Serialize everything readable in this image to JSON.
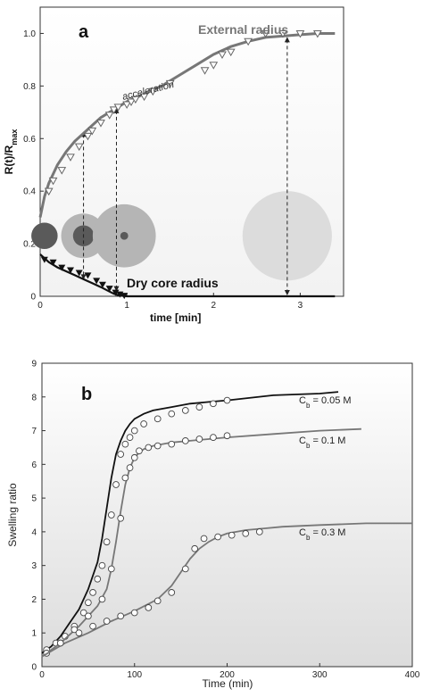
{
  "chart_data": [
    {
      "panel": "a",
      "type": "line",
      "ylabel_main": "R(t)/R",
      "ylabel_sub": "max",
      "xlabel": "time [min]",
      "xlim": [
        0,
        3.5
      ],
      "ylim": [
        0,
        1.1
      ],
      "xticks": [
        "0",
        "1",
        "2",
        "3"
      ],
      "yticks": [
        "0",
        "0.2",
        "0.4",
        "0.6",
        "0.8",
        "1.0"
      ],
      "grid": false,
      "annotations": {
        "external": "External radius",
        "dry": "Dry core radius",
        "accel": "acceleration"
      },
      "series": [
        {
          "name": "External radius",
          "color": "#777777",
          "fit": {
            "x": [
              0,
              0.05,
              0.1,
              0.2,
              0.3,
              0.4,
              0.5,
              0.6,
              0.7,
              0.8,
              0.9,
              1.0,
              1.2,
              1.4,
              1.6,
              1.8,
              2.0,
              2.2,
              2.4,
              2.6,
              2.8,
              3.0,
              3.2,
              3.4
            ],
            "y": [
              0.3,
              0.38,
              0.43,
              0.5,
              0.55,
              0.59,
              0.62,
              0.65,
              0.68,
              0.7,
              0.72,
              0.74,
              0.77,
              0.8,
              0.84,
              0.88,
              0.92,
              0.95,
              0.97,
              0.985,
              0.99,
              0.995,
              1.0,
              1.0
            ]
          },
          "points": {
            "x": [
              0.1,
              0.15,
              0.25,
              0.35,
              0.45,
              0.55,
              0.6,
              0.7,
              0.8,
              0.85,
              0.9,
              1.0,
              1.05,
              1.1,
              1.2,
              1.3,
              1.5,
              1.9,
              2.0,
              2.1,
              2.2,
              2.4,
              2.6,
              2.8,
              3.0,
              3.2
            ],
            "y": [
              0.4,
              0.44,
              0.48,
              0.53,
              0.57,
              0.61,
              0.63,
              0.66,
              0.69,
              0.71,
              0.72,
              0.73,
              0.74,
              0.75,
              0.76,
              0.78,
              0.81,
              0.86,
              0.88,
              0.92,
              0.93,
              0.97,
              1.0,
              1.0,
              1.0,
              1.0
            ]
          }
        },
        {
          "name": "Dry core radius",
          "color": "#111111",
          "fit": {
            "x": [
              0,
              0.1,
              0.2,
              0.3,
              0.4,
              0.5,
              0.6,
              0.7,
              0.8,
              0.85,
              0.9,
              1.0,
              1.5,
              2.0,
              2.5,
              3.0,
              3.4
            ],
            "y": [
              0.16,
              0.13,
              0.11,
              0.095,
              0.08,
              0.065,
              0.05,
              0.035,
              0.018,
              0.01,
              0.004,
              0.0,
              0.0,
              0.0,
              0.0,
              0.0,
              0.0
            ]
          },
          "points": {
            "x": [
              0.05,
              0.15,
              0.25,
              0.35,
              0.45,
              0.55,
              0.65,
              0.72,
              0.8,
              0.87,
              0.92,
              0.97
            ],
            "y": [
              0.14,
              0.13,
              0.11,
              0.1,
              0.09,
              0.08,
              0.06,
              0.045,
              0.03,
              0.015,
              0.008,
              0.003
            ]
          }
        }
      ],
      "arrows": [
        {
          "x": 0.5,
          "y1": 0.63,
          "y2": 0.06
        },
        {
          "x": 0.88,
          "y1": 0.72,
          "y2": 0.015
        },
        {
          "x": 2.85,
          "y1": 0.99,
          "y2": 0.0
        }
      ],
      "schematics": [
        {
          "x": 0.05,
          "y": 0.23,
          "r_outer": 0.1,
          "r_core": 0.1
        },
        {
          "x": 0.5,
          "y": 0.23,
          "r_outer": 0.17,
          "r_core": 0.08
        },
        {
          "x": 0.97,
          "y": 0.23,
          "r_outer": 0.24,
          "r_core": 0.03
        },
        {
          "x": 2.85,
          "y": 0.23,
          "r_outer": 0.34,
          "r_core": 0
        }
      ],
      "colors": {
        "outer_fill": "#b5b5b5",
        "core_fill": "#5a5a5a",
        "last_fill": "#dcdcdc"
      }
    },
    {
      "panel": "b",
      "type": "line",
      "xlabel": "Time (min)",
      "ylabel": "Swelling ratio",
      "xlim": [
        0,
        400
      ],
      "ylim": [
        0,
        9
      ],
      "xticks": [
        "0",
        "100",
        "200",
        "300",
        "400"
      ],
      "yticks": [
        "0",
        "1",
        "2",
        "3",
        "4",
        "5",
        "6",
        "7",
        "8",
        "9"
      ],
      "grid": false,
      "series": [
        {
          "name": "C_b = 0.05 M",
          "label_main": "C",
          "label_sub": "b",
          "label_tail": " = 0.05 M",
          "color": "#111111",
          "fit": {
            "x": [
              0,
              10,
              20,
              30,
              40,
              50,
              60,
              65,
              70,
              75,
              80,
              85,
              90,
              95,
              100,
              110,
              120,
              140,
              160,
              180,
              200,
              250,
              300,
              320
            ],
            "y": [
              0.4,
              0.6,
              0.9,
              1.3,
              1.7,
              2.3,
              3.1,
              3.8,
              4.7,
              5.6,
              6.3,
              6.7,
              7.0,
              7.2,
              7.35,
              7.5,
              7.6,
              7.7,
              7.8,
              7.85,
              7.9,
              8.05,
              8.1,
              8.15
            ]
          },
          "points": {
            "x": [
              5,
              15,
              25,
              35,
              45,
              50,
              55,
              60,
              65,
              70,
              75,
              80,
              85,
              90,
              95,
              100,
              110,
              125,
              140,
              155,
              170,
              185,
              200
            ],
            "y": [
              0.5,
              0.7,
              0.9,
              1.2,
              1.6,
              1.9,
              2.2,
              2.6,
              3.0,
              3.7,
              4.5,
              5.4,
              6.3,
              6.6,
              6.8,
              7.0,
              7.2,
              7.35,
              7.5,
              7.6,
              7.7,
              7.8,
              7.9
            ]
          }
        },
        {
          "name": "C_b = 0.1 M",
          "label_main": "C",
          "label_sub": "b",
          "label_tail": " = 0.1 M",
          "color": "#777777",
          "fit": {
            "x": [
              0,
              20,
              40,
              60,
              70,
              75,
              80,
              85,
              90,
              95,
              100,
              105,
              110,
              120,
              140,
              160,
              180,
              200,
              250,
              300,
              345
            ],
            "y": [
              0.3,
              0.7,
              1.2,
              1.8,
              2.3,
              2.9,
              3.7,
              4.6,
              5.4,
              5.9,
              6.2,
              6.35,
              6.45,
              6.55,
              6.65,
              6.7,
              6.75,
              6.8,
              6.9,
              7.0,
              7.05
            ]
          },
          "points": {
            "x": [
              5,
              20,
              35,
              50,
              65,
              75,
              85,
              90,
              95,
              100,
              105,
              115,
              125,
              140,
              155,
              170,
              185,
              200
            ],
            "y": [
              0.4,
              0.7,
              1.1,
              1.5,
              2.0,
              2.9,
              4.4,
              5.6,
              5.9,
              6.2,
              6.4,
              6.5,
              6.55,
              6.6,
              6.7,
              6.75,
              6.8,
              6.85
            ]
          }
        },
        {
          "name": "C_b = 0.3 M",
          "label_main": "C",
          "label_sub": "b",
          "label_tail": " = 0.3 M",
          "color": "#777777",
          "fit": {
            "x": [
              0,
              25,
              50,
              75,
              100,
              125,
              140,
              150,
              160,
              170,
              180,
              190,
              200,
              220,
              240,
              260,
              300,
              350,
              400
            ],
            "y": [
              0.3,
              0.7,
              1.0,
              1.35,
              1.65,
              2.0,
              2.4,
              2.8,
              3.2,
              3.5,
              3.7,
              3.85,
              3.95,
              4.05,
              4.1,
              4.15,
              4.2,
              4.25,
              4.25
            ]
          },
          "points": {
            "x": [
              20,
              40,
              55,
              70,
              85,
              100,
              115,
              125,
              140,
              155,
              165,
              175,
              190,
              205,
              220,
              235
            ],
            "y": [
              0.7,
              1.0,
              1.2,
              1.35,
              1.5,
              1.6,
              1.75,
              1.95,
              2.2,
              2.9,
              3.5,
              3.8,
              3.85,
              3.9,
              3.95,
              4.0
            ]
          }
        }
      ]
    }
  ]
}
